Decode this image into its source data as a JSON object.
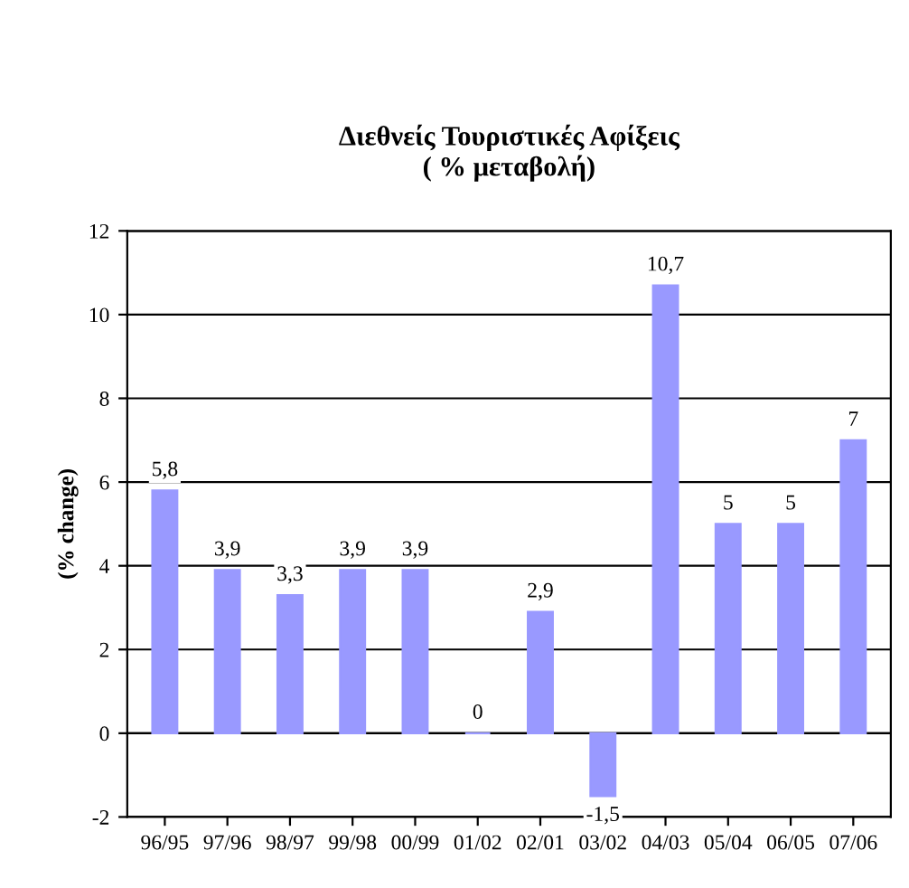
{
  "chart_data": {
    "type": "bar",
    "title": "Διεθνείς Τουριστικές Αφίξεις\n( % μεταβολή)",
    "ylabel": "(% change)",
    "categories": [
      "96/95",
      "97/96",
      "98/97",
      "99/98",
      "00/99",
      "01/02",
      "02/01",
      "03/02",
      "04/03",
      "05/04",
      "06/05",
      "07/06"
    ],
    "values": [
      5.8,
      3.9,
      3.3,
      3.9,
      3.9,
      0,
      2.9,
      -1.5,
      10.7,
      5,
      5,
      7
    ],
    "value_labels": [
      "5,8",
      "3,9",
      "3,3",
      "3,9",
      "3,9",
      "0",
      "2,9",
      "-1,5",
      "10,7",
      "5",
      "5",
      "7"
    ],
    "color": "#9999ff",
    "ylim": [
      -2,
      12
    ],
    "yticks": [
      -2,
      0,
      2,
      4,
      6,
      8,
      10,
      12
    ],
    "grid": "y"
  }
}
